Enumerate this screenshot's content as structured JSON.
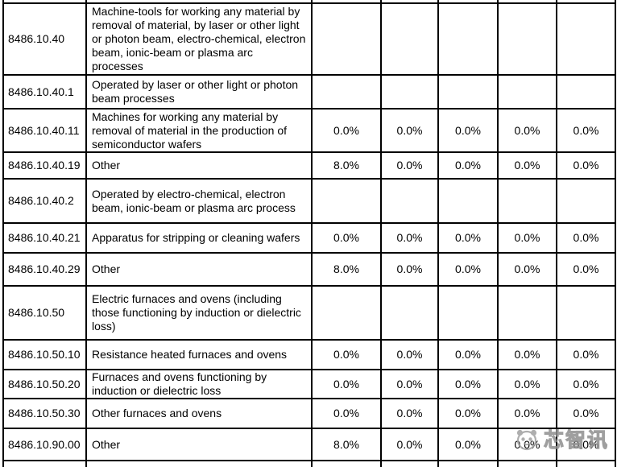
{
  "table": {
    "rows": [
      {
        "code": "8486.10.40",
        "description": "Machine-tools for working any material by removal of material, by laser or other light or photon beam, electro-chemical, electron beam, ionic-beam or plasma arc processes",
        "values": [
          "",
          "",
          "",
          "",
          ""
        ]
      },
      {
        "code": "8486.10.40.1",
        "description": "Operated by laser or other light or photon beam processes",
        "values": [
          "",
          "",
          "",
          "",
          ""
        ]
      },
      {
        "code": "8486.10.40.11",
        "description": "Machines for working any material by removal of material in the production of semiconductor wafers",
        "values": [
          "0.0%",
          "0.0%",
          "0.0%",
          "0.0%",
          "0.0%"
        ]
      },
      {
        "code": "8486.10.40.19",
        "description": "Other",
        "values": [
          "8.0%",
          "0.0%",
          "0.0%",
          "0.0%",
          "0.0%"
        ]
      },
      {
        "code": "8486.10.40.2",
        "description": "Operated by electro-chemical, electron beam, ionic-beam or plasma arc process",
        "values": [
          "",
          "",
          "",
          "",
          ""
        ]
      },
      {
        "code": "8486.10.40.21",
        "description": "Apparatus for stripping or cleaning wafers",
        "values": [
          "0.0%",
          "0.0%",
          "0.0%",
          "0.0%",
          "0.0%"
        ]
      },
      {
        "code": "8486.10.40.29",
        "description": "Other",
        "values": [
          "8.0%",
          "0.0%",
          "0.0%",
          "0.0%",
          "0.0%"
        ]
      },
      {
        "code": "8486.10.50",
        "description": "Electric furnaces and ovens (including those functioning by induction or dielectric loss)",
        "values": [
          "",
          "",
          "",
          "",
          ""
        ]
      },
      {
        "code": "8486.10.50.10",
        "description": "Resistance heated furnaces and ovens",
        "values": [
          "0.0%",
          "0.0%",
          "0.0%",
          "0.0%",
          "0.0%"
        ]
      },
      {
        "code": "8486.10.50.20",
        "description": "Furnaces and ovens functioning by induction or dielectric loss",
        "values": [
          "0.0%",
          "0.0%",
          "0.0%",
          "0.0%",
          "0.0%"
        ]
      },
      {
        "code": "8486.10.50.30",
        "description": "Other furnaces and ovens",
        "values": [
          "0.0%",
          "0.0%",
          "0.0%",
          "0.0%",
          "0.0%"
        ]
      },
      {
        "code": "8486.10.90.00",
        "description": "Other",
        "values": [
          "8.0%",
          "0.0%",
          "0.0%",
          "0.0%",
          "0.0%"
        ]
      }
    ]
  },
  "watermark": {
    "text": "芯智讯",
    "logo": "panda-logo-icon",
    "color": "#b4b4b4"
  }
}
